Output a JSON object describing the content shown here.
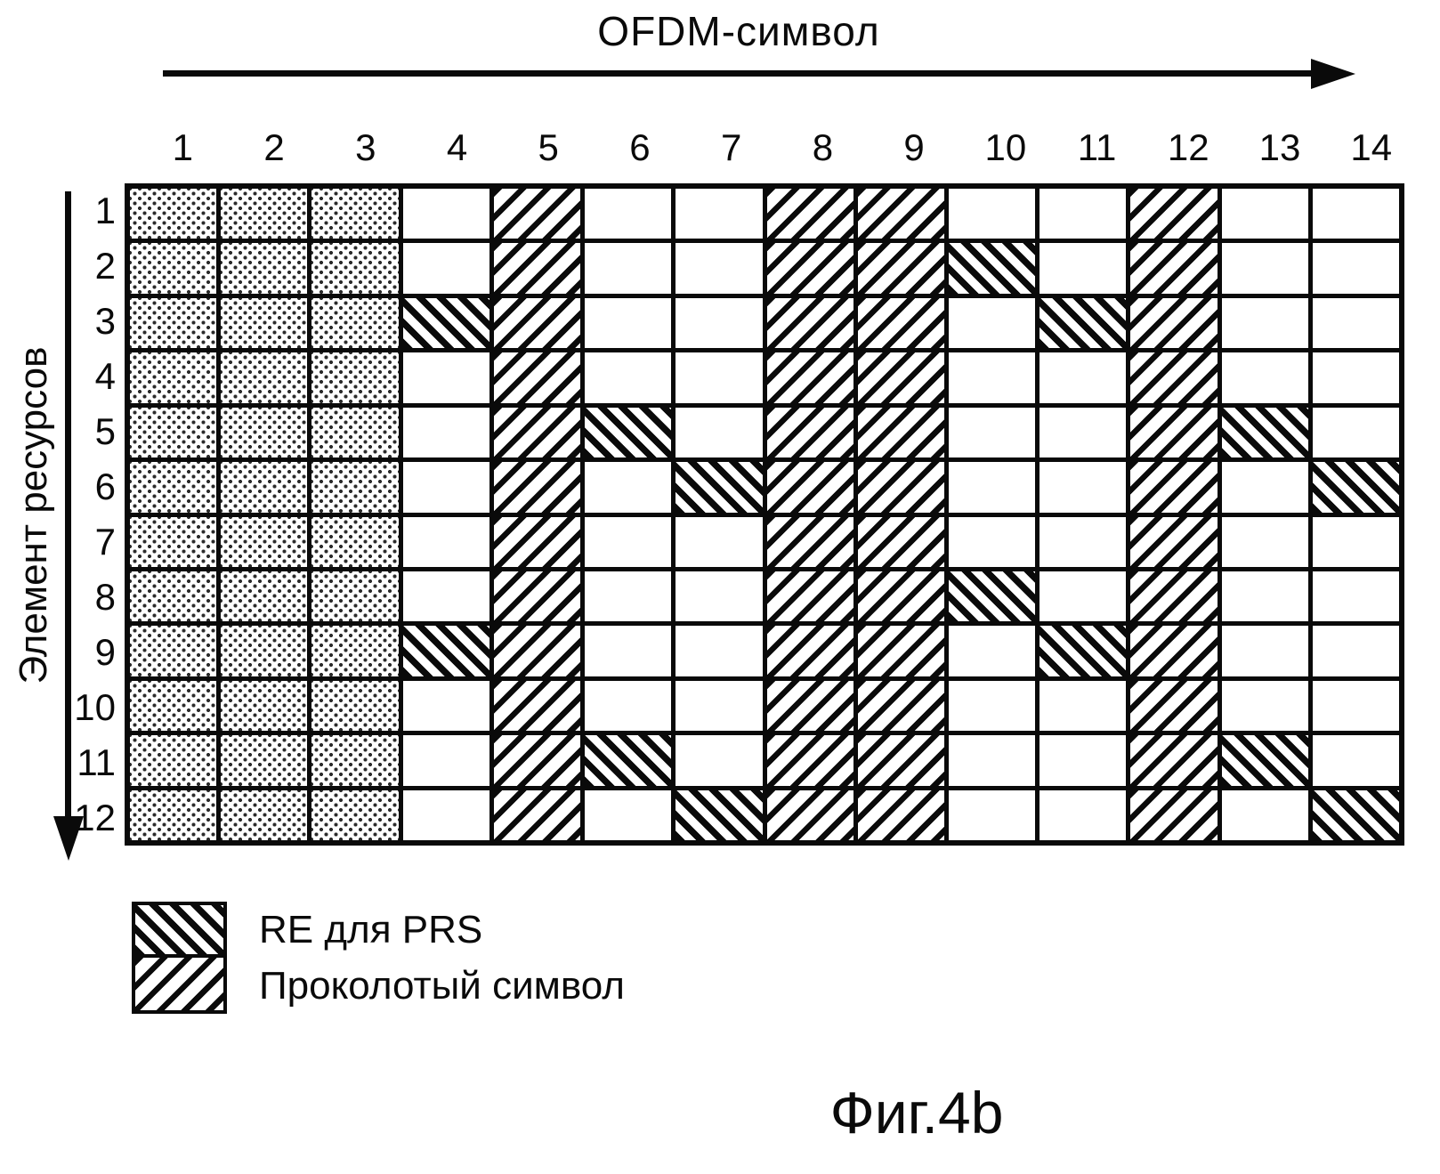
{
  "figure": {
    "title": "OFDM-символ",
    "y_axis_label": "Элемент ресурсов",
    "caption": "Фиг.4b"
  },
  "legend": [
    {
      "key": "prs",
      "label": "RE для PRS",
      "pattern": "backslash-hatch"
    },
    {
      "key": "punctured",
      "label": "Проколотый символ",
      "pattern": "slash-hatch"
    }
  ],
  "colors": {
    "ink": "#0a0a0a",
    "paper": "#ffffff"
  },
  "chart_data": {
    "type": "heatmap",
    "title": "",
    "xlabel": "OFDM-символ",
    "ylabel": "Элемент ресурсов",
    "columns": [
      "1",
      "2",
      "3",
      "4",
      "5",
      "6",
      "7",
      "8",
      "9",
      "10",
      "11",
      "12",
      "13",
      "14"
    ],
    "rows": [
      "1",
      "2",
      "3",
      "4",
      "5",
      "6",
      "7",
      "8",
      "9",
      "10",
      "11",
      "12"
    ],
    "cell_categories": {
      "dotted_columns": [
        1,
        2,
        3
      ],
      "punctured_columns": [
        5,
        8,
        9,
        12
      ],
      "prs_cells_row_col": [
        [
          2,
          10
        ],
        [
          3,
          4
        ],
        [
          3,
          11
        ],
        [
          5,
          6
        ],
        [
          5,
          13
        ],
        [
          6,
          7
        ],
        [
          6,
          14
        ],
        [
          8,
          10
        ],
        [
          9,
          4
        ],
        [
          9,
          11
        ],
        [
          11,
          6
        ],
        [
          11,
          13
        ],
        [
          12,
          7
        ],
        [
          12,
          14
        ]
      ]
    }
  }
}
